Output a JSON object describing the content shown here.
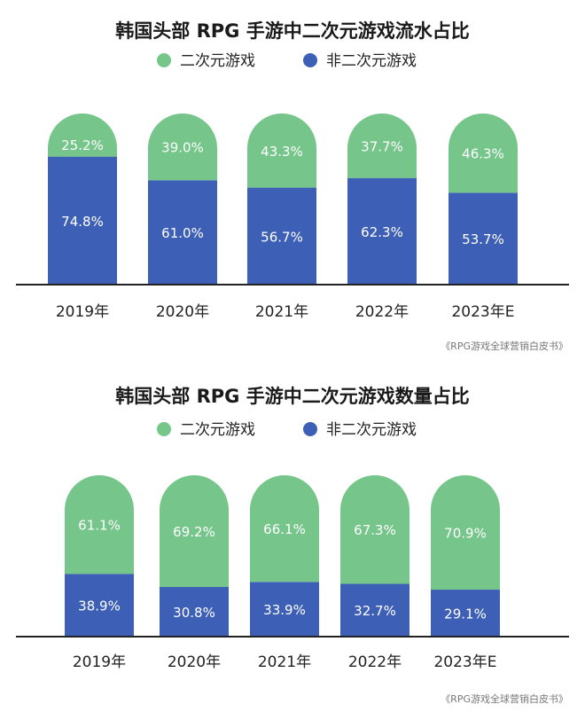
{
  "chart_data": [
    {
      "type": "bar",
      "stacked": true,
      "title": "韩国头部 RPG 手游中二次元游戏流水占比",
      "categories": [
        "2019年",
        "2020年",
        "2021年",
        "2022年",
        "2023年E"
      ],
      "series": [
        {
          "name": "二次元游戏",
          "color": "#76c58a",
          "values": [
            25.2,
            39.0,
            43.3,
            37.7,
            46.3
          ],
          "labels": [
            "25.2%",
            "39.0%",
            "43.3%",
            "37.7%",
            "46.3%"
          ]
        },
        {
          "name": "非二次元游戏",
          "color": "#3d5fb5",
          "values": [
            74.8,
            61.0,
            56.7,
            62.3,
            53.7
          ],
          "labels": [
            "74.8%",
            "61.0%",
            "56.7%",
            "62.3%",
            "53.7%"
          ]
        }
      ],
      "ylim": [
        0,
        100
      ],
      "legend": "top-center",
      "grid": false,
      "source": "《RPG游戏全球营销白皮书》"
    },
    {
      "type": "bar",
      "stacked": true,
      "title": "韩国头部 RPG 手游中二次元游戏数量占比",
      "categories": [
        "2019年",
        "2020年",
        "2021年",
        "2022年",
        "2023年E"
      ],
      "series": [
        {
          "name": "二次元游戏",
          "color": "#76c58a",
          "values": [
            61.1,
            69.2,
            66.1,
            67.3,
            70.9
          ],
          "labels": [
            "61.1%",
            "69.2%",
            "66.1%",
            "67.3%",
            "70.9%"
          ]
        },
        {
          "name": "非二次元游戏",
          "color": "#3d5fb5",
          "values": [
            38.9,
            30.8,
            33.9,
            32.7,
            29.1
          ],
          "labels": [
            "38.9%",
            "30.8%",
            "33.9%",
            "32.7%",
            "29.1%"
          ]
        }
      ],
      "ylim": [
        0,
        100
      ],
      "legend": "top-center",
      "grid": false,
      "source": "《RPG游戏全球营销白皮书》"
    }
  ]
}
